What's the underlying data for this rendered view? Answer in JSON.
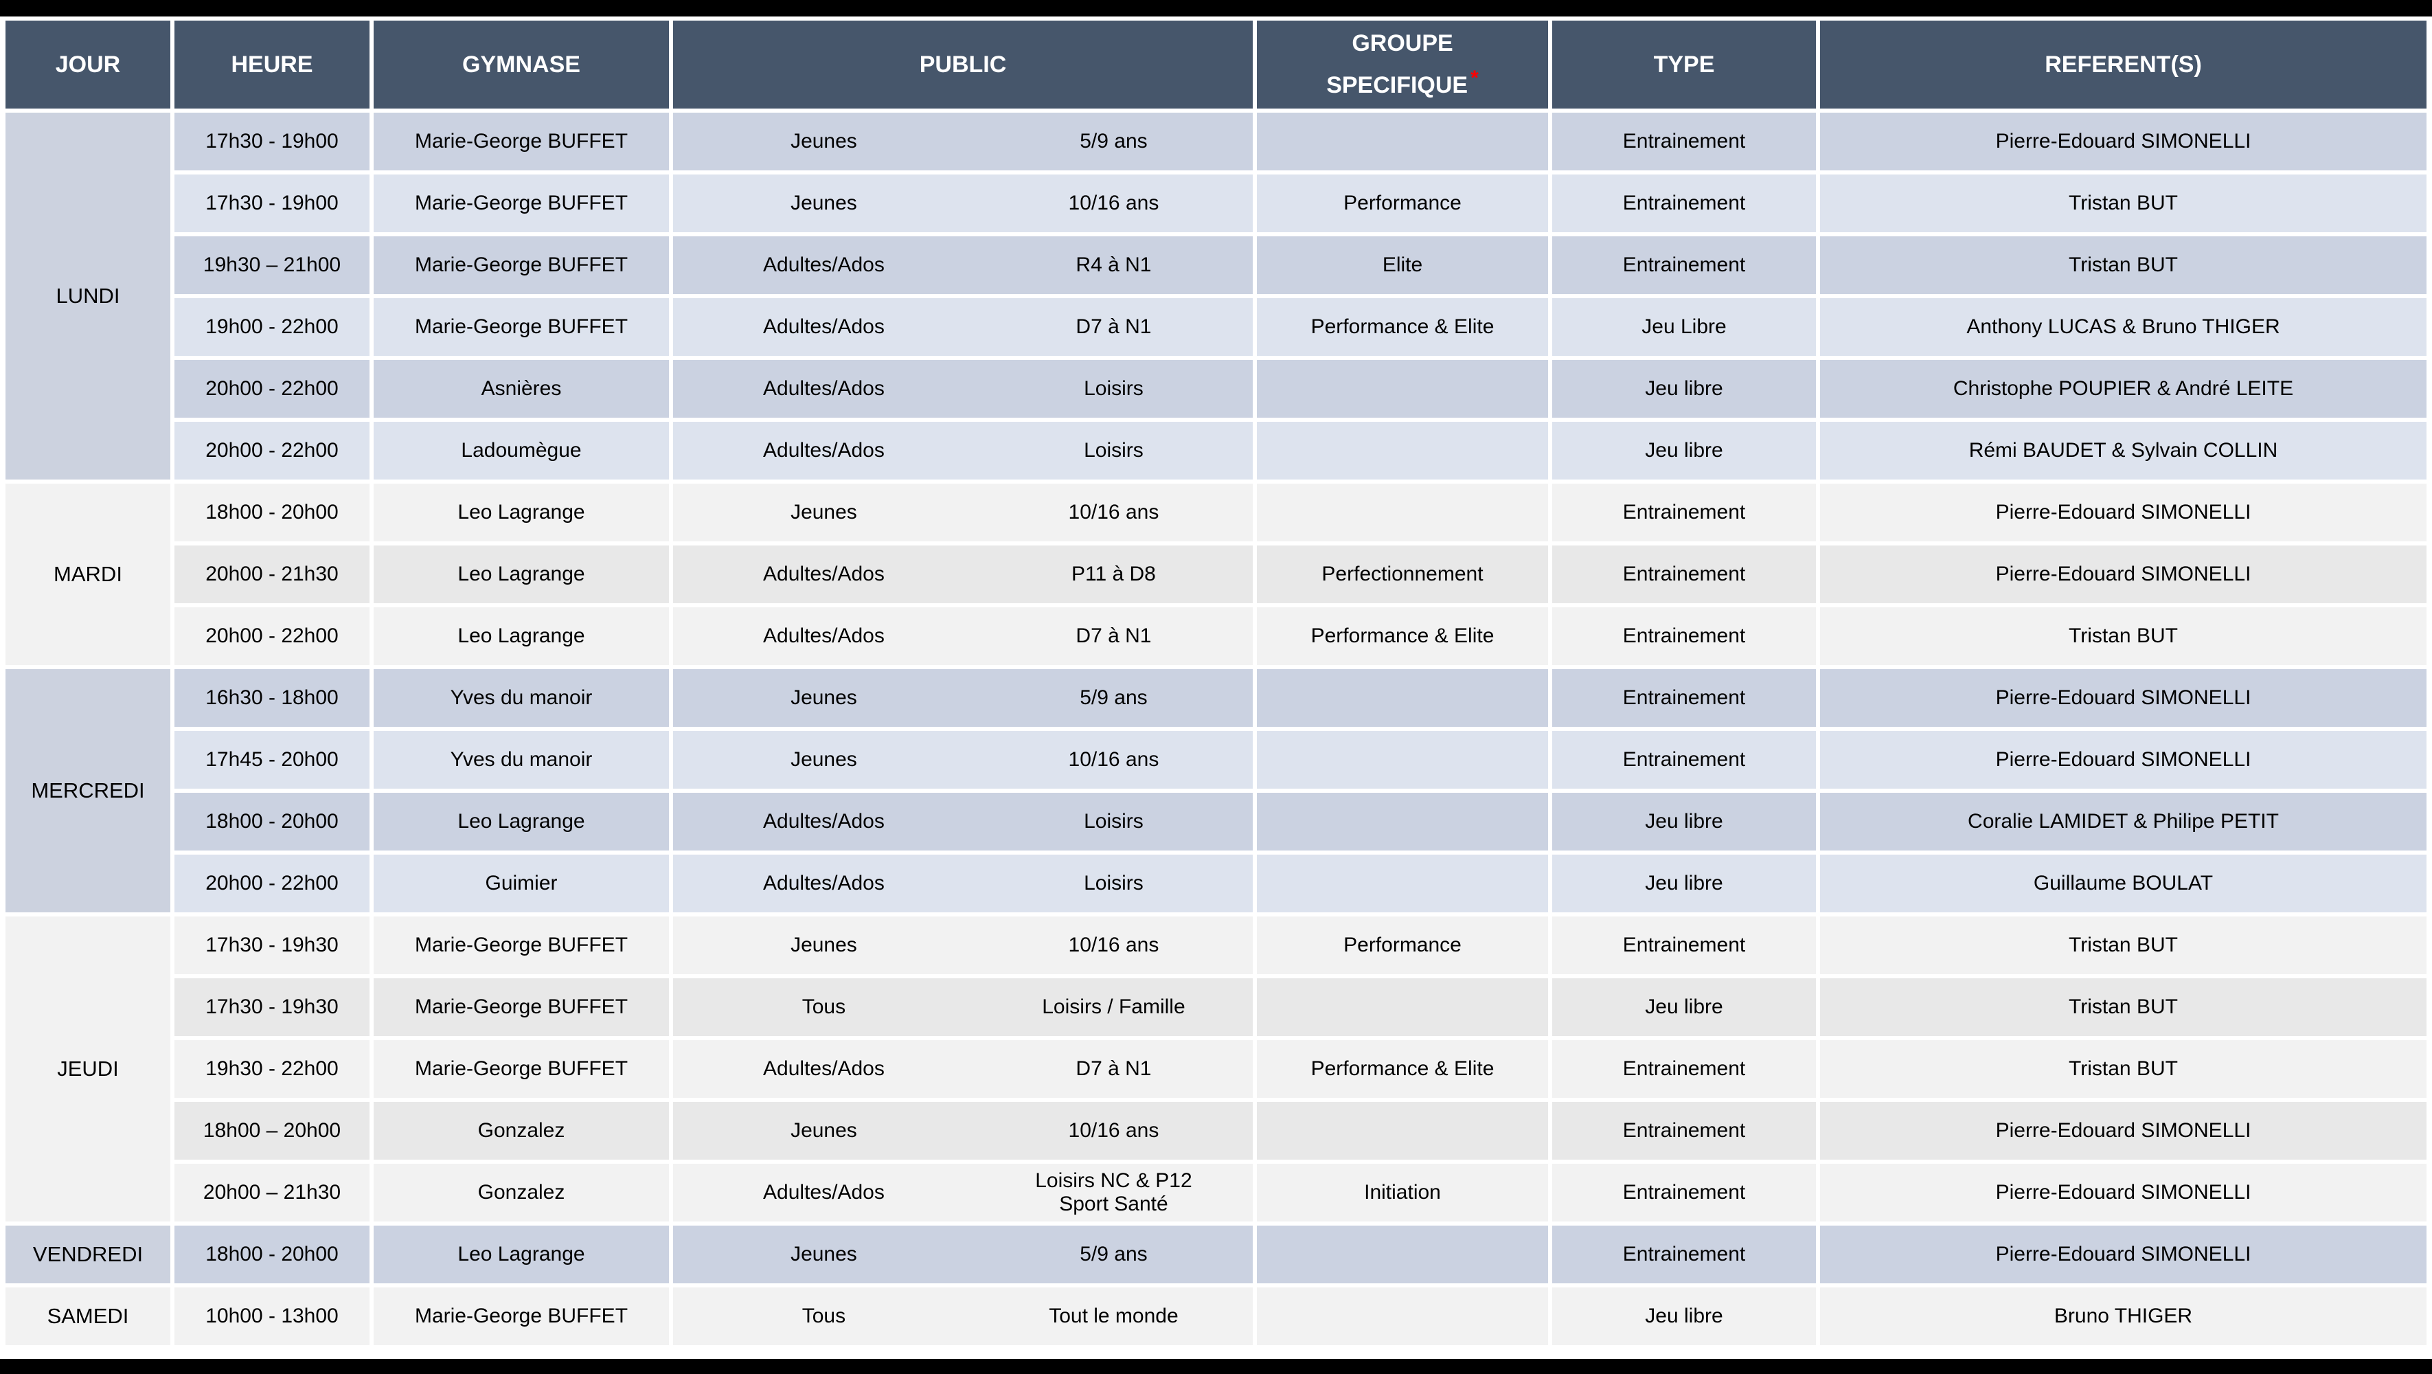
{
  "header": {
    "jour": "JOUR",
    "heure": "HEURE",
    "gymnase": "GYMNASE",
    "public": "PUBLIC",
    "groupe_line1": "GROUPE",
    "groupe_line2": "SPECIFIQUE",
    "groupe_asterisk": "*",
    "type": "TYPE",
    "referents": "REFERENT(S)"
  },
  "colors": {
    "page_bg": "#FFFFFF",
    "outer_bar": "#000000",
    "header_bg": "#46566B",
    "header_text": "#FFFFFF",
    "body_text": "#000000",
    "asterisk": "#FF0000",
    "blue_day_bg": "#CCD2DF",
    "blue_row_a": "#CBD2E1",
    "blue_row_b": "#DDE3EE",
    "light_day_bg": "#F2F2F2",
    "light_row_a": "#F2F2F2",
    "light_row_b": "#E8E8E8"
  },
  "days": [
    {
      "label": "LUNDI",
      "theme": "blue",
      "rows": [
        {
          "heure": "17h30 - 19h00",
          "gymnase": "Marie-George BUFFET",
          "public": "Jeunes",
          "niveau": "5/9 ans",
          "groupe": "",
          "type": "Entrainement",
          "referents": "Pierre-Edouard SIMONELLI"
        },
        {
          "heure": "17h30 - 19h00",
          "gymnase": "Marie-George BUFFET",
          "public": "Jeunes",
          "niveau": "10/16 ans",
          "groupe": "Performance",
          "type": "Entrainement",
          "referents": "Tristan BUT"
        },
        {
          "heure": "19h30 – 21h00",
          "gymnase": "Marie-George BUFFET",
          "public": "Adultes/Ados",
          "niveau": "R4 à N1",
          "groupe": "Elite",
          "type": "Entrainement",
          "referents": "Tristan BUT"
        },
        {
          "heure": "19h00 - 22h00",
          "gymnase": "Marie-George BUFFET",
          "public": "Adultes/Ados",
          "niveau": "D7 à N1",
          "groupe": "Performance & Elite",
          "type": "Jeu Libre",
          "referents": "Anthony LUCAS & Bruno THIGER"
        },
        {
          "heure": "20h00 - 22h00",
          "gymnase": "Asnières",
          "public": "Adultes/Ados",
          "niveau": "Loisirs",
          "groupe": "",
          "type": "Jeu libre",
          "referents": "Christophe POUPIER & André LEITE"
        },
        {
          "heure": "20h00 - 22h00",
          "gymnase": "Ladoumègue",
          "public": "Adultes/Ados",
          "niveau": "Loisirs",
          "groupe": "",
          "type": "Jeu libre",
          "referents": "Rémi BAUDET & Sylvain COLLIN"
        }
      ]
    },
    {
      "label": "MARDI",
      "theme": "light",
      "rows": [
        {
          "heure": "18h00 - 20h00",
          "gymnase": "Leo Lagrange",
          "public": "Jeunes",
          "niveau": "10/16 ans",
          "groupe": "",
          "type": "Entrainement",
          "referents": "Pierre-Edouard SIMONELLI"
        },
        {
          "heure": "20h00 - 21h30",
          "gymnase": "Leo Lagrange",
          "public": "Adultes/Ados",
          "niveau": "P11 à D8",
          "groupe": "Perfectionnement",
          "type": "Entrainement",
          "referents": "Pierre-Edouard SIMONELLI"
        },
        {
          "heure": "20h00 - 22h00",
          "gymnase": "Leo Lagrange",
          "public": "Adultes/Ados",
          "niveau": "D7 à N1",
          "groupe": "Performance & Elite",
          "type": "Entrainement",
          "referents": "Tristan BUT"
        }
      ]
    },
    {
      "label": "MERCREDI",
      "theme": "blue",
      "rows": [
        {
          "heure": "16h30 - 18h00",
          "gymnase": "Yves du manoir",
          "public": "Jeunes",
          "niveau": "5/9 ans",
          "groupe": "",
          "type": "Entrainement",
          "referents": "Pierre-Edouard SIMONELLI"
        },
        {
          "heure": "17h45 - 20h00",
          "gymnase": "Yves du manoir",
          "public": "Jeunes",
          "niveau": "10/16 ans",
          "groupe": "",
          "type": "Entrainement",
          "referents": "Pierre-Edouard SIMONELLI"
        },
        {
          "heure": "18h00 - 20h00",
          "gymnase": "Leo Lagrange",
          "public": "Adultes/Ados",
          "niveau": "Loisirs",
          "groupe": "",
          "type": "Jeu libre",
          "referents": "Coralie LAMIDET & Philipe PETIT"
        },
        {
          "heure": "20h00 - 22h00",
          "gymnase": "Guimier",
          "public": "Adultes/Ados",
          "niveau": "Loisirs",
          "groupe": "",
          "type": "Jeu libre",
          "referents": "Guillaume BOULAT"
        }
      ]
    },
    {
      "label": "JEUDI",
      "theme": "light",
      "rows": [
        {
          "heure": "17h30 - 19h30",
          "gymnase": "Marie-George BUFFET",
          "public": "Jeunes",
          "niveau": "10/16 ans",
          "groupe": "Performance",
          "type": "Entrainement",
          "referents": "Tristan BUT"
        },
        {
          "heure": "17h30 - 19h30",
          "gymnase": "Marie-George BUFFET",
          "public": "Tous",
          "niveau": "Loisirs / Famille",
          "groupe": "",
          "type": "Jeu libre",
          "referents": "Tristan BUT"
        },
        {
          "heure": "19h30 - 22h00",
          "gymnase": "Marie-George BUFFET",
          "public": "Adultes/Ados",
          "niveau": "D7 à N1",
          "groupe": "Performance & Elite",
          "type": "Entrainement",
          "referents": "Tristan BUT"
        },
        {
          "heure": "18h00 – 20h00",
          "gymnase": "Gonzalez",
          "public": "Jeunes",
          "niveau": "10/16 ans",
          "groupe": "",
          "type": "Entrainement",
          "referents": "Pierre-Edouard SIMONELLI"
        },
        {
          "heure": "20h00 – 21h30",
          "gymnase": "Gonzalez",
          "public": "Adultes/Ados",
          "niveau": "Loisirs NC & P12\nSport Santé",
          "groupe": "Initiation",
          "type": "Entrainement",
          "referents": "Pierre-Edouard SIMONELLI"
        }
      ]
    },
    {
      "label": "VENDREDI",
      "theme": "blue",
      "rows": [
        {
          "heure": "18h00 - 20h00",
          "gymnase": "Leo Lagrange",
          "public": "Jeunes",
          "niveau": "5/9 ans",
          "groupe": "",
          "type": "Entrainement",
          "referents": "Pierre-Edouard SIMONELLI"
        }
      ]
    },
    {
      "label": "SAMEDI",
      "theme": "light",
      "rows": [
        {
          "heure": "10h00 - 13h00",
          "gymnase": "Marie-George BUFFET",
          "public": "Tous",
          "niveau": "Tout le monde",
          "groupe": "",
          "type": "Jeu libre",
          "referents": "Bruno THIGER"
        }
      ]
    }
  ]
}
